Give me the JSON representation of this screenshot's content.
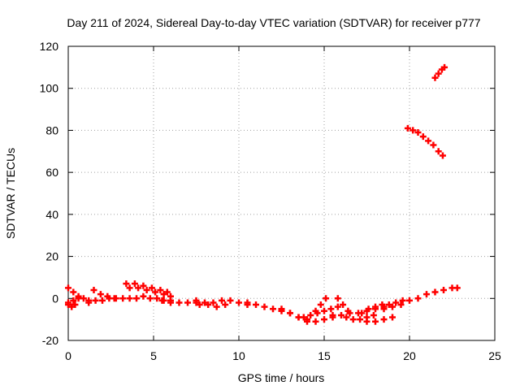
{
  "chart_data": {
    "type": "scatter",
    "title": "Day 211 of 2024, Sidereal Day-to-day VTEC variation (SDTVAR) for receiver p777",
    "xlabel": "GPS time / hours",
    "ylabel": "SDTVAR / TECUs",
    "xlim": [
      0,
      25
    ],
    "ylim": [
      -20,
      120
    ],
    "xticks": [
      0,
      5,
      10,
      15,
      20,
      25
    ],
    "yticks": [
      -20,
      0,
      20,
      40,
      60,
      80,
      100,
      120
    ],
    "xtick_labels": [
      "0",
      "5",
      "10",
      "15",
      "20",
      "25"
    ],
    "ytick_labels": [
      "-20",
      "0",
      "20",
      "40",
      "60",
      "80",
      "100",
      "120"
    ],
    "grid": true,
    "marker": "plus",
    "series_color": "#ff0000",
    "series": [
      {
        "name": "arc-1",
        "x": [
          0.0,
          0.3,
          0.6,
          0.9,
          1.2
        ],
        "y": [
          -2,
          -1,
          0,
          0,
          -1
        ]
      },
      {
        "name": "arc-2",
        "x": [
          0.0,
          0.3,
          0.6
        ],
        "y": [
          5,
          3,
          1
        ]
      },
      {
        "name": "arc-3",
        "x": [
          0.0,
          0.2,
          0.4
        ],
        "y": [
          -3,
          -4,
          -3
        ]
      },
      {
        "name": "arc-4",
        "x": [
          1.2,
          1.6,
          2.0,
          2.4,
          2.8,
          3.2,
          3.6,
          4.0,
          4.4,
          4.8,
          5.2,
          5.6,
          6.0
        ],
        "y": [
          -2,
          -1,
          -1,
          0,
          0,
          0,
          0,
          0,
          1,
          0,
          0,
          -1,
          -2
        ]
      },
      {
        "name": "arc-5",
        "x": [
          1.5,
          1.9,
          2.3,
          2.7
        ],
        "y": [
          4,
          2,
          1,
          0
        ]
      },
      {
        "name": "arc-6",
        "x": [
          3.4,
          3.9,
          4.4,
          4.9,
          5.4,
          5.8
        ],
        "y": [
          7,
          7,
          6,
          5,
          4,
          3
        ]
      },
      {
        "name": "arc-7",
        "x": [
          3.6,
          4.1,
          4.6,
          5.1,
          5.6,
          6.0
        ],
        "y": [
          5,
          5,
          4,
          3,
          2,
          1
        ]
      },
      {
        "name": "arc-8",
        "x": [
          5.5,
          6.0,
          6.5,
          7.0,
          7.5
        ],
        "y": [
          -1,
          -1,
          -2,
          -2,
          -1
        ]
      },
      {
        "name": "arc-9",
        "x": [
          7.5,
          8.0,
          8.5,
          9.0,
          9.5,
          10.0,
          10.5
        ],
        "y": [
          -2,
          -2,
          -2,
          -1,
          -1,
          -2,
          -2
        ]
      },
      {
        "name": "arc-10",
        "x": [
          7.7,
          8.2,
          8.7,
          9.2
        ],
        "y": [
          -3,
          -3,
          -4,
          -3
        ]
      },
      {
        "name": "arc-11",
        "x": [
          10.5,
          11.0,
          11.5,
          12.0,
          12.5,
          13.0,
          13.5,
          14.0
        ],
        "y": [
          -3,
          -3,
          -4,
          -5,
          -6,
          -7,
          -9,
          -10
        ]
      },
      {
        "name": "arc-12",
        "x": [
          12.5,
          13.0,
          13.5,
          14.0,
          14.5,
          15.0,
          15.5
        ],
        "y": [
          -5,
          -7,
          -9,
          -11,
          -11,
          -10,
          -9
        ]
      },
      {
        "name": "arc-13",
        "x": [
          13.8,
          14.2,
          14.6,
          15.0,
          15.4,
          15.8
        ],
        "y": [
          -9,
          -8,
          -7,
          -6,
          -5,
          -4
        ]
      },
      {
        "name": "arc-14",
        "x": [
          14.5,
          14.8,
          15.1
        ],
        "y": [
          -6,
          -3,
          0
        ]
      },
      {
        "name": "arc-15",
        "x": [
          15.5,
          16.0,
          16.5,
          17.0,
          17.5,
          18.0,
          18.5
        ],
        "y": [
          -8,
          -8,
          -7,
          -7,
          -6,
          -5,
          -4
        ]
      },
      {
        "name": "arc-16",
        "x": [
          15.8,
          16.1,
          16.4
        ],
        "y": [
          0,
          -3,
          -6
        ]
      },
      {
        "name": "arc-17",
        "x": [
          16.3,
          16.7,
          17.1,
          17.5,
          17.9
        ],
        "y": [
          -9,
          -10,
          -10,
          -9,
          -8
        ]
      },
      {
        "name": "arc-18",
        "x": [
          17.2,
          17.6,
          18.0,
          18.4
        ],
        "y": [
          -7,
          -5,
          -4,
          -3
        ]
      },
      {
        "name": "arc-19",
        "x": [
          17.5,
          18.0,
          18.5,
          19.0
        ],
        "y": [
          -11,
          -11,
          -10,
          -9
        ]
      },
      {
        "name": "arc-20",
        "x": [
          18.5,
          19.0,
          19.5,
          20.0,
          20.5,
          21.0,
          21.5,
          22.0,
          22.5,
          22.8
        ],
        "y": [
          -5,
          -4,
          -3,
          -1,
          0,
          2,
          3,
          4,
          5,
          5
        ]
      },
      {
        "name": "arc-21",
        "x": [
          18.8,
          19.2,
          19.6
        ],
        "y": [
          -3,
          -2,
          -1
        ]
      },
      {
        "name": "arc-22",
        "x": [
          19.9,
          20.2,
          20.5,
          20.8,
          21.1,
          21.4,
          21.7,
          21.95
        ],
        "y": [
          81,
          80,
          79,
          77,
          75,
          73,
          70,
          68
        ]
      },
      {
        "name": "arc-23",
        "x": [
          21.5,
          21.7,
          21.9,
          22.05
        ],
        "y": [
          105,
          107,
          109,
          110
        ]
      }
    ]
  }
}
